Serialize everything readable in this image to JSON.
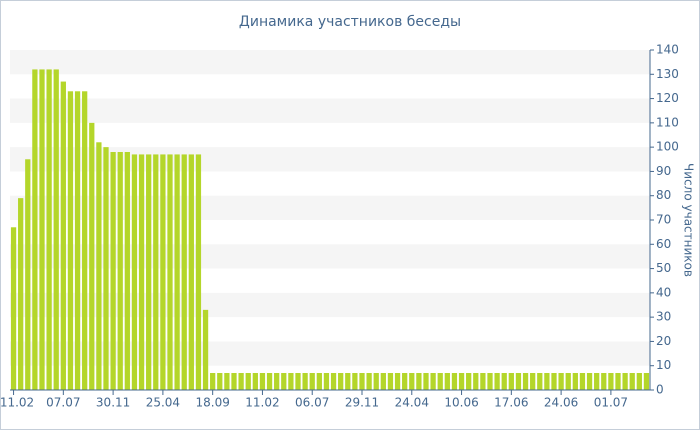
{
  "chart_data": {
    "type": "bar",
    "title": "Динамика участников беседы",
    "y_axis_label": "Число участников",
    "categories": [
      "11.02",
      null,
      null,
      null,
      null,
      null,
      null,
      "07.07",
      null,
      null,
      null,
      null,
      null,
      null,
      "30.11",
      null,
      null,
      null,
      null,
      null,
      null,
      "25.04",
      null,
      null,
      null,
      null,
      null,
      null,
      "18.09",
      null,
      null,
      null,
      null,
      null,
      null,
      "11.02",
      null,
      null,
      null,
      null,
      null,
      null,
      "06.07",
      null,
      null,
      null,
      null,
      null,
      null,
      "29.11",
      null,
      null,
      null,
      null,
      null,
      null,
      "24.04",
      null,
      null,
      null,
      null,
      null,
      null,
      "10.06",
      null,
      null,
      null,
      null,
      null,
      null,
      "17.06",
      null,
      null,
      null,
      null,
      null,
      null,
      "24.06",
      null,
      null,
      null,
      null,
      null,
      null,
      "01.07",
      null,
      null,
      null,
      null,
      null
    ],
    "values": [
      67,
      79,
      95,
      132,
      132,
      132,
      132,
      127,
      123,
      123,
      123,
      110,
      102,
      100,
      98,
      98,
      98,
      97,
      97,
      97,
      97,
      97,
      97,
      97,
      97,
      97,
      97,
      33,
      7,
      7,
      7,
      7,
      7,
      7,
      7,
      7,
      7,
      7,
      7,
      7,
      7,
      7,
      7,
      7,
      7,
      7,
      7,
      7,
      7,
      7,
      7,
      7,
      7,
      7,
      7,
      7,
      7,
      7,
      7,
      7,
      7,
      7,
      7,
      7,
      7,
      7,
      7,
      7,
      7,
      7,
      7,
      7,
      7,
      7,
      7,
      7,
      7,
      7,
      7,
      7,
      7,
      7,
      7,
      7,
      7,
      7,
      7,
      7,
      7,
      7
    ],
    "color": "#b4d62a",
    "ylim": [
      0,
      140
    ],
    "yticks": [
      0,
      10,
      20,
      30,
      40,
      50,
      60,
      70,
      80,
      90,
      100,
      110,
      120,
      130,
      140
    ],
    "grid": true
  }
}
